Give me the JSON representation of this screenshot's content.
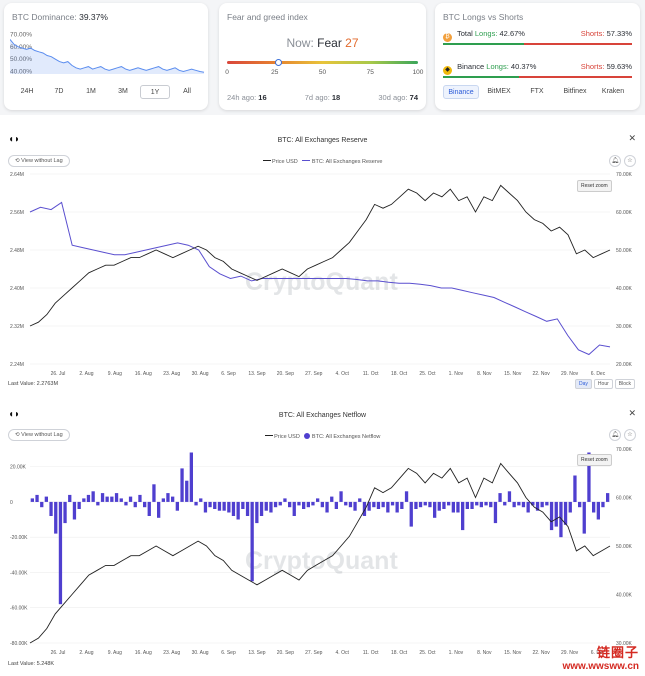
{
  "dominance": {
    "title": "BTC Dominance:",
    "value": "39.37%",
    "yticks": [
      "70.00%",
      "60.00%",
      "50.00%",
      "40.00%"
    ],
    "series": [
      66,
      62,
      60,
      59,
      58,
      59,
      57,
      56,
      55,
      53,
      52,
      50,
      48,
      47,
      48,
      45,
      43,
      42,
      43,
      44,
      42,
      43,
      44,
      42,
      41,
      42,
      43,
      44,
      42,
      41,
      42,
      43,
      42,
      41,
      42,
      43,
      44,
      42,
      41,
      42,
      43,
      41,
      40,
      41,
      42,
      41,
      40,
      39.4
    ],
    "ranges": [
      "24H",
      "7D",
      "1M",
      "3M",
      "1Y",
      "All"
    ],
    "active_range": "1Y",
    "accent": "#5b8def"
  },
  "fear_greed": {
    "title": "Fear and greed index",
    "now_label": "Now:",
    "now_word": "Fear",
    "now_value": "27",
    "value": 27,
    "ticks": [
      "0",
      "25",
      "50",
      "75",
      "100"
    ],
    "h24_label": "24h ago:",
    "h24_value": "16",
    "d7_label": "7d ago:",
    "d7_value": "18",
    "d30_label": "30d ago:",
    "d30_value": "74"
  },
  "longs_shorts": {
    "title": "BTC Longs vs Shorts",
    "total_name": "Total",
    "total_longs_label": "Longs:",
    "total_longs": "42.67%",
    "total_longs_value": 42.67,
    "total_shorts_label": "Shorts:",
    "total_shorts": "57.33%",
    "binance_name": "Binance",
    "binance_longs_label": "Longs:",
    "binance_longs": "40.37%",
    "binance_longs_value": 40.37,
    "binance_shorts_label": "Shorts:",
    "binance_shorts": "59.63%",
    "exchanges": [
      "Binance",
      "BitMEX",
      "FTX",
      "Bitfinex",
      "Kraken"
    ],
    "active_exchange": "Binance"
  },
  "chart1_ui": {
    "title": "BTC: All Exchanges Reserve",
    "view_btn": "View without Lag",
    "legend_price": "Price USD",
    "legend_series": "BTC: All Exchanges Reserve",
    "reset": "Reset zoom",
    "last_value": "Last Value: 2.2763M",
    "timeframes": [
      "Day",
      "Hour",
      "Block"
    ],
    "active_timeframe": "Day",
    "watermark": "CryptoQuant"
  },
  "chart2_ui": {
    "title": "BTC: All Exchanges Netflow",
    "view_btn": "View without Lag",
    "legend_price": "Price USD",
    "legend_series": "BTC: All Exchanges Netflow",
    "reset": "Reset zoom",
    "last_value": "Last Value: 5.248K",
    "watermark": "CryptoQuant"
  },
  "chart_data": [
    {
      "type": "line",
      "title": "BTC: All Exchanges Reserve",
      "x_ticks": [
        "26. Jul",
        "2. Aug",
        "9. Aug",
        "16. Aug",
        "23. Aug",
        "30. Aug",
        "6. Sep",
        "13. Sep",
        "20. Sep",
        "27. Sep",
        "4. Oct",
        "11. Oct",
        "18. Oct",
        "25. Oct",
        "1. Nov",
        "8. Nov",
        "15. Nov",
        "22. Nov",
        "29. Nov",
        "6. Dec"
      ],
      "y_left_ticks": [
        "2.64M",
        "2.56M",
        "2.48M",
        "2.40M",
        "2.32M",
        "2.24M"
      ],
      "y_left_lim": [
        2.24,
        2.64
      ],
      "y_right_ticks": [
        "70.00K",
        "60.00K",
        "50.00K",
        "40.00K",
        "30.00K",
        "20.00K"
      ],
      "y_right_lim": [
        20,
        70
      ],
      "colors": {
        "reserve": "#5a4fcf",
        "price": "#222222"
      },
      "series": [
        {
          "name": "BTC: All Exchanges Reserve",
          "axis": "left",
          "values": [
            2.56,
            2.57,
            2.565,
            2.58,
            2.49,
            2.485,
            2.48,
            2.475,
            2.47,
            2.47,
            2.475,
            2.48,
            2.485,
            2.49,
            2.495,
            2.49,
            2.48,
            2.445,
            2.43,
            2.42,
            2.425,
            2.415,
            2.42,
            2.42,
            2.42,
            2.42,
            2.42,
            2.42,
            2.42,
            2.42,
            2.42,
            2.418,
            2.415,
            2.415,
            2.412,
            2.41,
            2.41,
            2.408,
            2.405,
            2.4,
            2.4,
            2.395,
            2.39,
            2.385,
            2.38,
            2.37,
            2.36,
            2.35,
            2.34,
            2.33,
            2.335,
            2.3,
            2.27,
            2.26,
            2.28,
            2.276
          ]
        },
        {
          "name": "Price USD",
          "axis": "right",
          "values": [
            30,
            31,
            33,
            36,
            38,
            40,
            42,
            44,
            45,
            46,
            46,
            47,
            48,
            48,
            49,
            50,
            49,
            48,
            49,
            50,
            51,
            50,
            48,
            47,
            45,
            44,
            43,
            42,
            43,
            44,
            45,
            44,
            43,
            45,
            46,
            47,
            48,
            50,
            52,
            55,
            58,
            62,
            61,
            62,
            64,
            66,
            65,
            63,
            65,
            64,
            66,
            63,
            64,
            60,
            64,
            63,
            67,
            65,
            63,
            60,
            58,
            57,
            55,
            56,
            54,
            49,
            50,
            48,
            49,
            50
          ]
        }
      ]
    },
    {
      "type": "bar",
      "title": "BTC: All Exchanges Netflow",
      "x_ticks": [
        "26. Jul",
        "2. Aug",
        "9. Aug",
        "16. Aug",
        "23. Aug",
        "30. Aug",
        "6. Sep",
        "13. Sep",
        "20. Sep",
        "27. Sep",
        "4. Oct",
        "11. Oct",
        "18. Oct",
        "25. Oct",
        "1. Nov",
        "8. Nov",
        "15. Nov",
        "22. Nov",
        "29. Nov",
        "6. Dec"
      ],
      "y_left_ticks": [
        "20.00K",
        "0",
        "-20.00K",
        "-40.00K",
        "-60.00K",
        "-80.00K"
      ],
      "y_left_lim": [
        -80,
        30
      ],
      "y_right_ticks": [
        "70.00K",
        "60.00K",
        "50.00K",
        "40.00K",
        "30.00K"
      ],
      "y_right_lim": [
        30,
        70
      ],
      "colors": {
        "netflow": "#4f3fcf",
        "price": "#222222"
      },
      "series": [
        {
          "name": "BTC: All Exchanges Netflow",
          "axis": "left",
          "values": [
            2,
            4,
            -3,
            3,
            -8,
            -18,
            -58,
            -12,
            4,
            -10,
            -4,
            2,
            4,
            6,
            -2,
            5,
            3,
            3,
            5,
            2,
            -2,
            3,
            -3,
            4,
            -3,
            -8,
            10,
            -9,
            2,
            5,
            3,
            -5,
            19,
            12,
            28,
            -2,
            2,
            -6,
            -3,
            -4,
            -5,
            -5,
            -6,
            -8,
            -10,
            -4,
            -8,
            -45,
            -12,
            -8,
            -5,
            -6,
            -3,
            -2,
            2,
            -3,
            -8,
            -2,
            -4,
            -3,
            -2,
            2,
            -3,
            -6,
            3,
            -4,
            6,
            -2,
            -3,
            -5,
            2,
            -8,
            -5,
            -3,
            -4,
            -3,
            -6,
            -2,
            -6,
            -4,
            6,
            -14,
            -4,
            -3,
            -2,
            -3,
            -9,
            -5,
            -4,
            -2,
            -6,
            -6,
            -16,
            -4,
            -4,
            -2,
            -3,
            -2,
            -3,
            -12,
            5,
            -2,
            6,
            -3,
            -2,
            -3,
            -6,
            -2,
            -5,
            -3,
            -2,
            -16,
            -14,
            -20,
            -13,
            -6,
            15,
            -3,
            -18,
            28,
            -6,
            -10,
            -3,
            5
          ]
        },
        {
          "name": "Price USD",
          "axis": "right",
          "values": [
            30,
            31,
            33,
            36,
            38,
            40,
            42,
            44,
            45,
            46,
            46,
            47,
            48,
            48,
            49,
            50,
            49,
            48,
            49,
            50,
            51,
            50,
            48,
            47,
            45,
            44,
            43,
            42,
            43,
            44,
            45,
            44,
            43,
            45,
            46,
            47,
            48,
            50,
            52,
            55,
            58,
            62,
            61,
            62,
            64,
            66,
            65,
            63,
            65,
            64,
            66,
            63,
            64,
            60,
            64,
            63,
            67,
            65,
            63,
            60,
            58,
            57,
            55,
            56,
            54,
            49,
            50,
            48,
            49,
            50
          ]
        }
      ]
    }
  ],
  "site_badge": {
    "cn": "链圈子",
    "url": "www.wwsww.cn"
  }
}
